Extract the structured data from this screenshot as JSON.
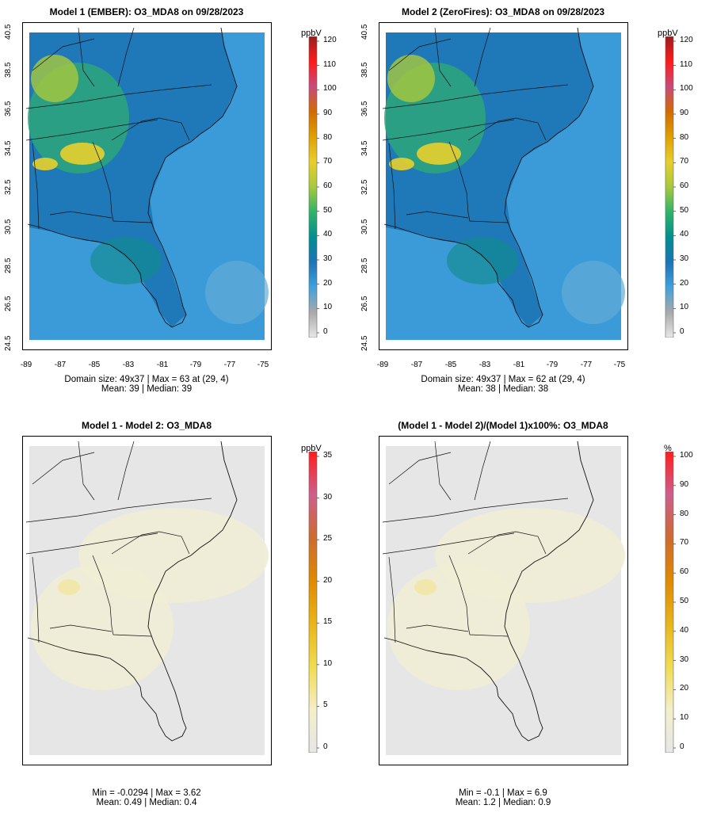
{
  "colors": {
    "conc_scale": [
      "#e8e8e8",
      "#a9a9a9",
      "#3fa1dd",
      "#1c73b5",
      "#008f8f",
      "#2fb36a",
      "#a6c93b",
      "#e8cf2b",
      "#e0a000",
      "#d26a00",
      "#c84b7b",
      "#ff1a1a",
      "#9b1c1c"
    ],
    "diff_scale": [
      "#e6e6e6",
      "#f4efc9",
      "#f0dc4f",
      "#e9b518",
      "#df8a00",
      "#cd6b2e",
      "#cd5f8d",
      "#ff1d1d"
    ],
    "background": "#ffffff",
    "diff_background": "#e6e6e6"
  },
  "panels": [
    {
      "id": "model1",
      "title": "Model 1 (EMBER): O3_MDA8 on 09/28/2023",
      "stats_line1": "Domain size: 49x37 | Max = 63 at (29, 4)",
      "stats_line2": "Mean: 39 |  Median: 39",
      "y_ticks": [
        "24.5",
        "26.5",
        "28.5",
        "30.5",
        "32.5",
        "34.5",
        "36.5",
        "38.5",
        "40.5"
      ],
      "x_ticks": [
        "-89",
        "-87",
        "-85",
        "-83",
        "-81",
        "-79",
        "-77",
        "-75"
      ],
      "colorbar": {
        "unit": "ppbV",
        "labels": [
          "0",
          "10",
          "20",
          "30",
          "40",
          "50",
          "60",
          "70",
          "80",
          "90",
          "100",
          "110",
          "120"
        ]
      }
    },
    {
      "id": "model2",
      "title": "Model 2 (ZeroFires): O3_MDA8 on 09/28/2023",
      "stats_line1": "Domain size: 49x37 | Max = 62 at (29, 4)",
      "stats_line2": "Mean: 38 |  Median: 38",
      "y_ticks": [
        "24.5",
        "26.5",
        "28.5",
        "30.5",
        "32.5",
        "34.5",
        "36.5",
        "38.5",
        "40.5"
      ],
      "x_ticks": [
        "-89",
        "-87",
        "-85",
        "-83",
        "-81",
        "-79",
        "-77",
        "-75"
      ],
      "colorbar": {
        "unit": "ppbV",
        "labels": [
          "0",
          "10",
          "20",
          "30",
          "40",
          "50",
          "60",
          "70",
          "80",
          "90",
          "100",
          "110",
          "120"
        ]
      }
    },
    {
      "id": "diff",
      "title": "Model 1 - Model 2: O3_MDA8",
      "stats_line1": "Min = -0.0294 | Max = 3.62",
      "stats_line2": "Mean: 0.49 |  Median: 0.4",
      "colorbar": {
        "unit": "ppbV",
        "labels": [
          "0",
          "5",
          "10",
          "15",
          "20",
          "25",
          "30",
          "35"
        ]
      }
    },
    {
      "id": "pctdiff",
      "title": "(Model 1 - Model 2)/(Model 1)x100%: O3_MDA8",
      "stats_line1": "Min = -0.1 | Max = 6.9",
      "stats_line2": "Mean: 1.2 |  Median: 0.9",
      "colorbar": {
        "unit": "%",
        "labels": [
          "0",
          "10",
          "20",
          "30",
          "40",
          "50",
          "60",
          "70",
          "80",
          "90",
          "100"
        ]
      }
    }
  ]
}
